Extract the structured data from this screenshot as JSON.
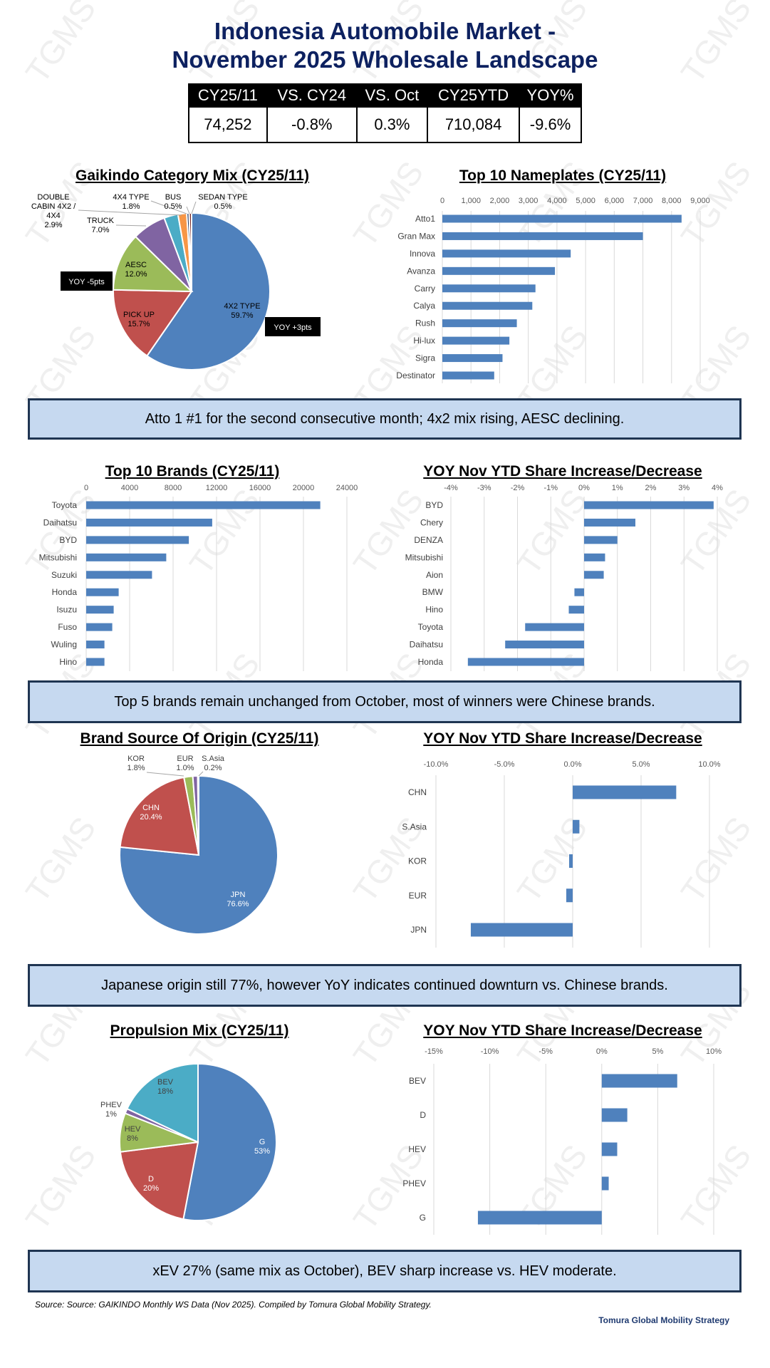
{
  "header": {
    "title_line1": "Indonesia Automobile Market -",
    "title_line2": "November 2025 Wholesale Landscape",
    "kpi_headers": [
      "CY25/11",
      "VS. CY24",
      "VS. Oct",
      "CY25YTD",
      "YOY%"
    ],
    "kpi_values": [
      "74,252",
      "-0.8%",
      "0.3%",
      "710,084",
      "-9.6%"
    ]
  },
  "watermark": "TGMS",
  "callouts": [
    "Atto 1 #1 for the second consecutive month; 4x2 mix rising, AESC declining.",
    "Top 5 brands remain unchanged from October, most of winners were Chinese brands.",
    "Japanese origin still 77%, however YoY indicates continued downturn vs. Chinese brands.",
    "xEV 27% (same mix as October), BEV sharp increase vs. HEV moderate."
  ],
  "footer": {
    "source": "Source: Source: GAIKINDO Monthly WS Data (Nov 2025). Compiled by Tomura Global Mobility Strategy.",
    "brand": "Tomura Global Mobility Strategy"
  },
  "colors": {
    "bar": "#4f81bd",
    "blue": "#4f81bd",
    "red": "#c0504d",
    "green": "#9bbb59",
    "purple": "#8064a2",
    "aqua": "#4bacc6",
    "orange": "#f79646",
    "navy": "#1f3864",
    "darkred": "#7b2a26",
    "callout_bg": "#c6d9f0",
    "title": "#0d2160"
  },
  "chart_data": [
    {
      "type": "pie",
      "title": "Gaikindo Category Mix (CY25/11)",
      "labels": [
        "4X2 TYPE",
        "PICK UP",
        "AESC",
        "TRUCK",
        "DOUBLE CABIN 4X2 / 4X4",
        "4X4 TYPE",
        "BUS",
        "SEDAN TYPE"
      ],
      "values": [
        59.7,
        15.7,
        12.0,
        7.0,
        2.9,
        1.8,
        0.5,
        0.5
      ],
      "value_labels": [
        "59.7%",
        "15.7%",
        "12.0%",
        "7.0%",
        "2.9%",
        "1.8%",
        "0.5%",
        "0.5%"
      ],
      "colors": [
        "#4f81bd",
        "#c0504d",
        "#9bbb59",
        "#8064a2",
        "#4bacc6",
        "#f79646",
        "#1f3864",
        "#7b2a26"
      ],
      "annotations": [
        "YOY -5pts",
        "YOY +3pts"
      ]
    },
    {
      "type": "bar",
      "title": "Top 10 Nameplates (CY25/11)",
      "categories": [
        "Atto1",
        "Gran Max",
        "Innova",
        "Avanza",
        "Carry",
        "Calya",
        "Rush",
        "Hi-lux",
        "Sigra",
        "Destinator"
      ],
      "values": [
        8350,
        7000,
        4480,
        3930,
        3250,
        3140,
        2600,
        2340,
        2100,
        1810
      ],
      "xlim": [
        0,
        9000
      ],
      "tick_values": [
        0,
        1000,
        2000,
        3000,
        4000,
        5000,
        6000,
        7000,
        8000,
        9000
      ],
      "tick_labels": [
        "0",
        "1,000",
        "2,000",
        "3,000",
        "4,000",
        "5,000",
        "6,000",
        "7,000",
        "8,000",
        "9,000"
      ],
      "grid": true
    },
    {
      "type": "bar",
      "title": "Top 10 Brands (CY25/11)",
      "categories": [
        "Toyota",
        "Daihatsu",
        "BYD",
        "Mitsubishi",
        "Suzuki",
        "Honda",
        "Isuzu",
        "Fuso",
        "Wuling",
        "Hino"
      ],
      "values": [
        21550,
        11600,
        9450,
        7370,
        6060,
        2990,
        2530,
        2400,
        1680,
        1680
      ],
      "xlim": [
        0,
        24000
      ],
      "tick_values": [
        0,
        4000,
        8000,
        12000,
        16000,
        20000,
        24000
      ],
      "tick_labels": [
        "0",
        "4000",
        "8000",
        "12000",
        "16000",
        "20000",
        "24000"
      ],
      "grid": true
    },
    {
      "type": "bar",
      "title": "YOY Nov YTD Share Increase/Decrease",
      "categories": [
        "BYD",
        "Chery",
        "DENZA",
        "Mitsubishi",
        "Aion",
        "BMW",
        "Hino",
        "Toyota",
        "Daihatsu",
        "Honda"
      ],
      "values": [
        3.89,
        1.54,
        1.0,
        0.63,
        0.59,
        -0.29,
        -0.46,
        -1.77,
        -2.37,
        -3.49
      ],
      "unit": "%",
      "xlim": [
        -4,
        4
      ],
      "tick_values": [
        -4,
        -3,
        -2,
        -1,
        0,
        1,
        2,
        3,
        4
      ],
      "tick_labels": [
        "-4%",
        "-3%",
        "-2%",
        "-1%",
        "0%",
        "1%",
        "2%",
        "3%",
        "4%"
      ],
      "grid": true
    },
    {
      "type": "pie",
      "title": "Brand Source Of Origin (CY25/11)",
      "labels": [
        "JPN",
        "CHN",
        "KOR",
        "EUR",
        "S.Asia"
      ],
      "values": [
        76.6,
        20.4,
        1.8,
        1.0,
        0.2
      ],
      "value_labels": [
        "76.6%",
        "20.4%",
        "1.8%",
        "1.0%",
        "0.2%"
      ],
      "colors": [
        "#4f81bd",
        "#c0504d",
        "#9bbb59",
        "#8064a2",
        "#4bacc6"
      ]
    },
    {
      "type": "bar",
      "title": "YOY Nov YTD Share Increase/Decrease",
      "categories": [
        "CHN",
        "S.Asia",
        "KOR",
        "EUR",
        "JPN"
      ],
      "values": [
        7.57,
        0.49,
        -0.26,
        -0.47,
        -7.45
      ],
      "unit": "%",
      "xlim": [
        -10,
        10
      ],
      "tick_values": [
        -10,
        -5,
        0,
        5,
        10
      ],
      "tick_labels": [
        "-10.0%",
        "-5.0%",
        "0.0%",
        "5.0%",
        "10.0%"
      ],
      "grid": true
    },
    {
      "type": "pie",
      "title": "Propulsion Mix (CY25/11)",
      "labels": [
        "G",
        "D",
        "HEV",
        "PHEV",
        "BEV"
      ],
      "values": [
        53,
        20,
        8,
        1,
        18
      ],
      "value_labels": [
        "53%",
        "20%",
        "8%",
        "1%",
        "18%"
      ],
      "colors": [
        "#4f81bd",
        "#c0504d",
        "#9bbb59",
        "#8064a2",
        "#4bacc6"
      ]
    },
    {
      "type": "bar",
      "title": "YOY Nov YTD Share Increase/Decrease",
      "categories": [
        "BEV",
        "D",
        "HEV",
        "PHEV",
        "G"
      ],
      "values": [
        6.74,
        2.28,
        1.38,
        0.62,
        -11.06
      ],
      "unit": "%",
      "xlim": [
        -15,
        10
      ],
      "tick_values": [
        -15,
        -10,
        -5,
        0,
        5,
        10
      ],
      "tick_labels": [
        "-15%",
        "-10%",
        "-5%",
        "0%",
        "5%",
        "10%"
      ],
      "grid": true
    }
  ]
}
